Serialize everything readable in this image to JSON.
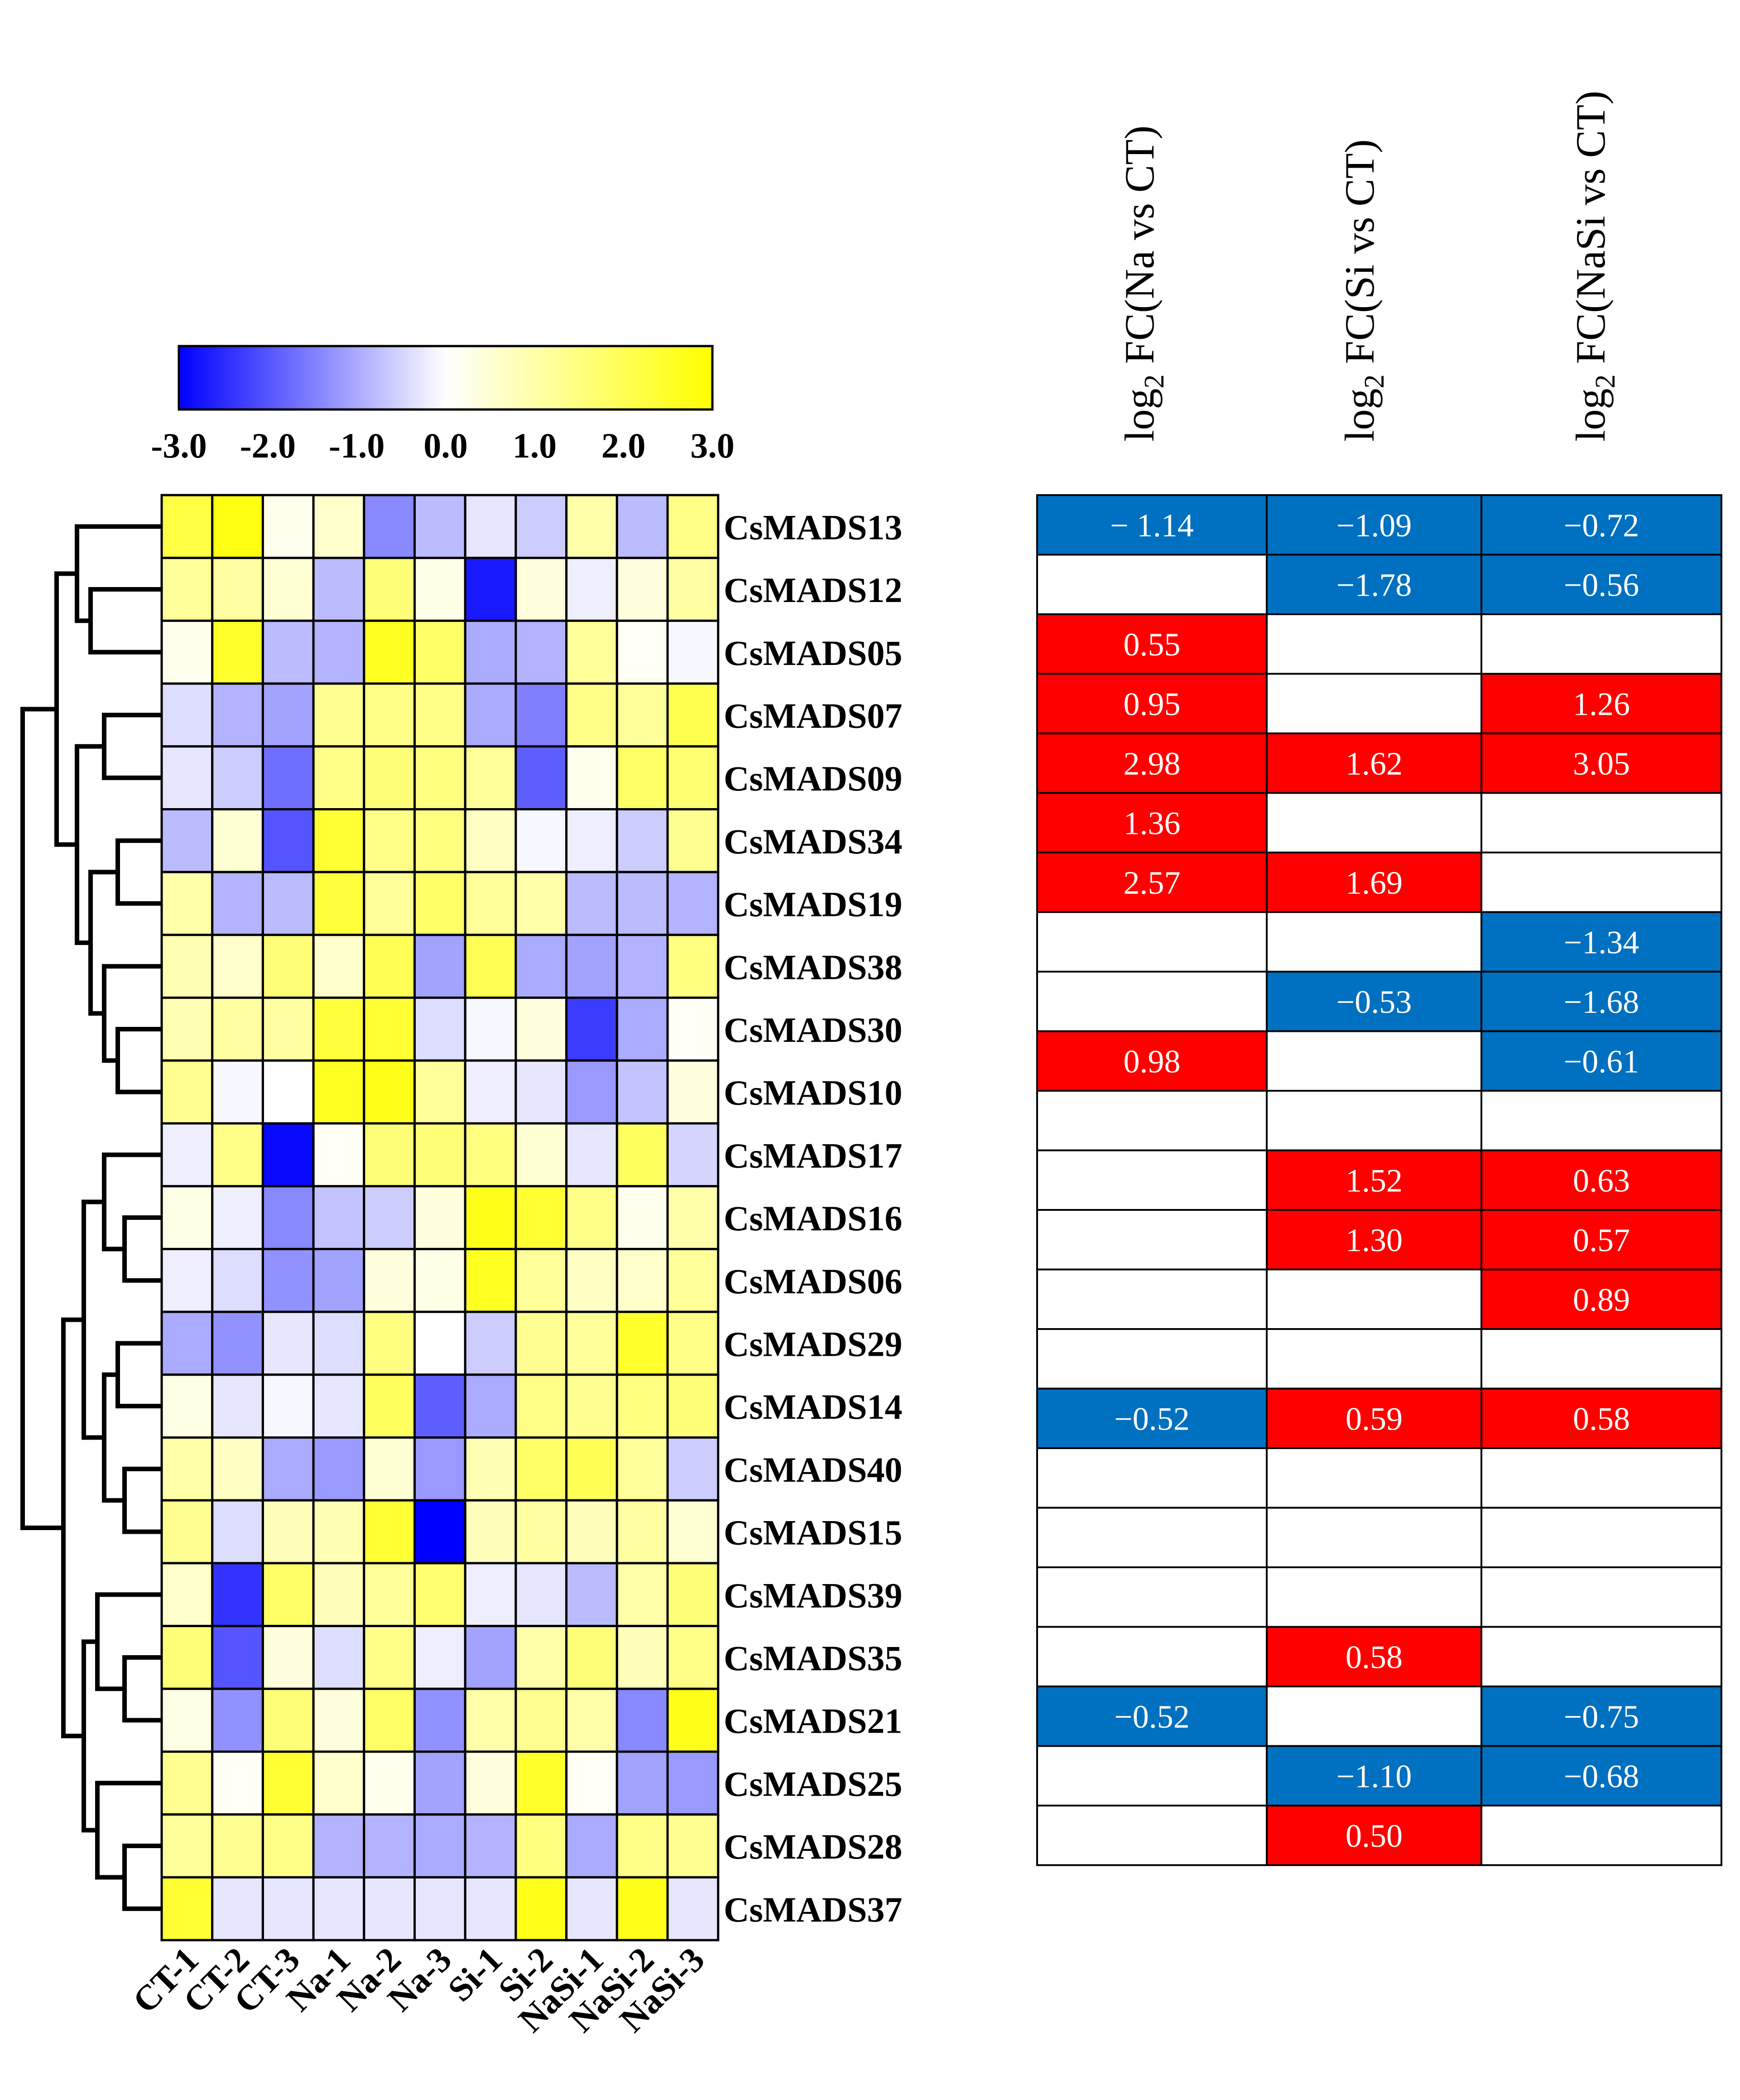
{
  "chart_data": [
    {
      "type": "heatmap",
      "title": "",
      "columns": [
        "CT-1",
        "CT-2",
        "CT-3",
        "Na-1",
        "Na-2",
        "Na-3",
        "Si-1",
        "Si-2",
        "NaSi-1",
        "NaSi-2",
        "NaSi-3"
      ],
      "rows": [
        "CsMADS13",
        "CsMADS12",
        "CsMADS05",
        "CsMADS07",
        "CsMADS09",
        "CsMADS34",
        "CsMADS19",
        "CsMADS38",
        "CsMADS30",
        "CsMADS10",
        "CsMADS17",
        "CsMADS16",
        "CsMADS06",
        "CsMADS29",
        "CsMADS14",
        "CsMADS40",
        "CsMADS15",
        "CsMADS39",
        "CsMADS35",
        "CsMADS21",
        "CsMADS25",
        "CsMADS28",
        "CsMADS37"
      ],
      "color_scale": {
        "min": -3.0,
        "max": 3.0,
        "low_color": "#0000ff",
        "mid_color": "#ffffff",
        "high_color": "#ffff00",
        "tick_labels": [
          "-3.0",
          "-2.0",
          "-1.0",
          "0.0",
          "1.0",
          "2.0",
          "3.0"
        ]
      },
      "values": [
        [
          2.2,
          2.8,
          0.2,
          0.6,
          -1.4,
          -0.8,
          -0.3,
          -0.6,
          1.0,
          -0.8,
          1.4
        ],
        [
          1.2,
          1.1,
          0.5,
          -0.8,
          1.6,
          0.3,
          -2.7,
          0.4,
          -0.2,
          0.4,
          1.1
        ],
        [
          0.2,
          2.5,
          -0.8,
          -0.9,
          2.6,
          1.8,
          -1.0,
          -0.9,
          1.2,
          0.1,
          -0.1
        ],
        [
          -0.4,
          -0.9,
          -1.1,
          1.3,
          1.4,
          1.4,
          -1.0,
          -1.5,
          1.4,
          1.2,
          2.1
        ],
        [
          -0.3,
          -0.6,
          -1.7,
          1.4,
          1.6,
          1.5,
          1.2,
          -1.9,
          0.2,
          1.8,
          1.7
        ],
        [
          -0.8,
          0.5,
          -2.0,
          2.4,
          1.4,
          1.5,
          0.7,
          -0.1,
          -0.2,
          -0.6,
          1.3
        ],
        [
          1.0,
          -0.9,
          -0.8,
          2.3,
          1.2,
          1.8,
          1.2,
          1.0,
          -0.8,
          -0.8,
          -0.9
        ],
        [
          0.9,
          0.6,
          1.6,
          0.6,
          2.0,
          -1.1,
          2.0,
          -1.0,
          -1.1,
          -0.9,
          1.5
        ],
        [
          0.9,
          1.1,
          1.1,
          2.3,
          2.4,
          -0.4,
          -0.1,
          0.4,
          -2.3,
          -1.0,
          0.1
        ],
        [
          1.3,
          -0.1,
          0.0,
          2.6,
          2.7,
          1.2,
          -0.2,
          -0.3,
          -1.2,
          -0.7,
          0.4
        ],
        [
          -0.2,
          1.4,
          -2.9,
          0.1,
          1.6,
          1.6,
          1.5,
          0.5,
          -0.3,
          1.9,
          -0.5
        ],
        [
          0.3,
          -0.2,
          -1.4,
          -0.7,
          -0.6,
          0.4,
          2.7,
          2.4,
          1.4,
          0.2,
          1.0
        ],
        [
          -0.2,
          -0.4,
          -1.3,
          -1.1,
          0.4,
          0.3,
          2.6,
          1.2,
          0.7,
          0.6,
          1.2
        ],
        [
          -1.0,
          -1.3,
          -0.3,
          -0.4,
          1.5,
          0.0,
          -0.6,
          1.3,
          1.2,
          2.5,
          1.4
        ],
        [
          0.3,
          -0.3,
          -0.1,
          -0.3,
          1.9,
          -1.9,
          -1.0,
          1.4,
          1.3,
          1.5,
          1.6
        ],
        [
          1.0,
          0.7,
          -1.0,
          -1.2,
          0.5,
          -1.2,
          0.9,
          1.8,
          2.0,
          1.2,
          -0.6
        ],
        [
          1.3,
          -0.4,
          0.8,
          0.9,
          2.4,
          -3.0,
          0.8,
          1.1,
          0.8,
          1.1,
          0.5
        ],
        [
          0.6,
          -2.4,
          1.8,
          0.8,
          1.2,
          1.7,
          -0.2,
          -0.3,
          -0.8,
          1.0,
          1.6
        ],
        [
          1.6,
          -2.0,
          0.4,
          -0.4,
          1.4,
          -0.2,
          -1.1,
          1.0,
          1.6,
          0.8,
          1.4
        ],
        [
          0.3,
          -1.3,
          1.6,
          0.4,
          1.8,
          -1.3,
          1.0,
          1.3,
          1.0,
          -1.4,
          2.7
        ],
        [
          1.3,
          0.1,
          2.4,
          0.6,
          0.2,
          -1.1,
          0.4,
          2.5,
          0.1,
          -1.1,
          -1.2
        ],
        [
          1.2,
          1.3,
          1.4,
          -0.9,
          -0.9,
          -1.0,
          -0.9,
          1.5,
          -1.0,
          1.4,
          1.3
        ],
        [
          2.4,
          -0.3,
          -0.3,
          -0.3,
          -0.3,
          -0.3,
          -0.3,
          2.7,
          -0.3,
          2.7,
          -0.3
        ]
      ]
    },
    {
      "type": "table",
      "title": "",
      "column_headers": [
        {
          "prefix": "log",
          "sub": "2",
          "suffix": " FC(Na vs CT)"
        },
        {
          "prefix": "log",
          "sub": "2",
          "suffix": " FC(Si vs CT)"
        },
        {
          "prefix": "log",
          "sub": "2",
          "suffix": " FC(NaSi vs CT)"
        }
      ],
      "up_color": "#ff0000",
      "down_color": "#0070c0",
      "cells": [
        [
          "− 1.14",
          "−1.09",
          "−0.72"
        ],
        [
          "",
          "−1.78",
          "−0.56"
        ],
        [
          "0.55",
          "",
          ""
        ],
        [
          "0.95",
          "",
          "1.26"
        ],
        [
          "2.98",
          "1.62",
          "3.05"
        ],
        [
          "1.36",
          "",
          ""
        ],
        [
          "2.57",
          "1.69",
          ""
        ],
        [
          "",
          "",
          "−1.34"
        ],
        [
          "",
          "−0.53",
          "−1.68"
        ],
        [
          "0.98",
          "",
          "−0.61"
        ],
        [
          "",
          "",
          ""
        ],
        [
          "",
          "1.52",
          "0.63"
        ],
        [
          "",
          "1.30",
          "0.57"
        ],
        [
          "",
          "",
          "0.89"
        ],
        [
          "",
          "",
          ""
        ],
        [
          "−0.52",
          "0.59",
          "0.58"
        ],
        [
          "",
          "",
          ""
        ],
        [
          "",
          "",
          ""
        ],
        [
          "",
          "",
          ""
        ],
        [
          "",
          "0.58",
          ""
        ],
        [
          "−0.52",
          "",
          "−0.75"
        ],
        [
          "",
          "−1.10",
          "−0.68"
        ],
        [
          "",
          "0.50",
          ""
        ]
      ]
    }
  ]
}
